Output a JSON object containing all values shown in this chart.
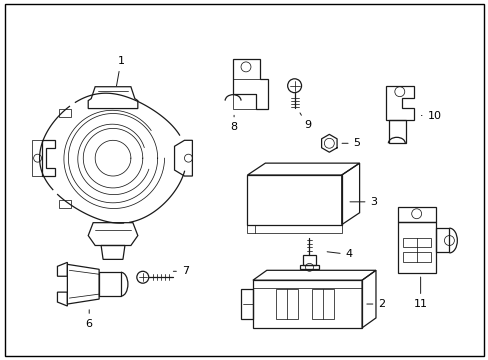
{
  "background_color": "#ffffff",
  "border_color": "#000000",
  "fig_width": 4.89,
  "fig_height": 3.6,
  "dpi": 100,
  "line_color": "#1a1a1a",
  "label_color": "#000000",
  "label_fontsize": 8,
  "border_lw": 1.0
}
